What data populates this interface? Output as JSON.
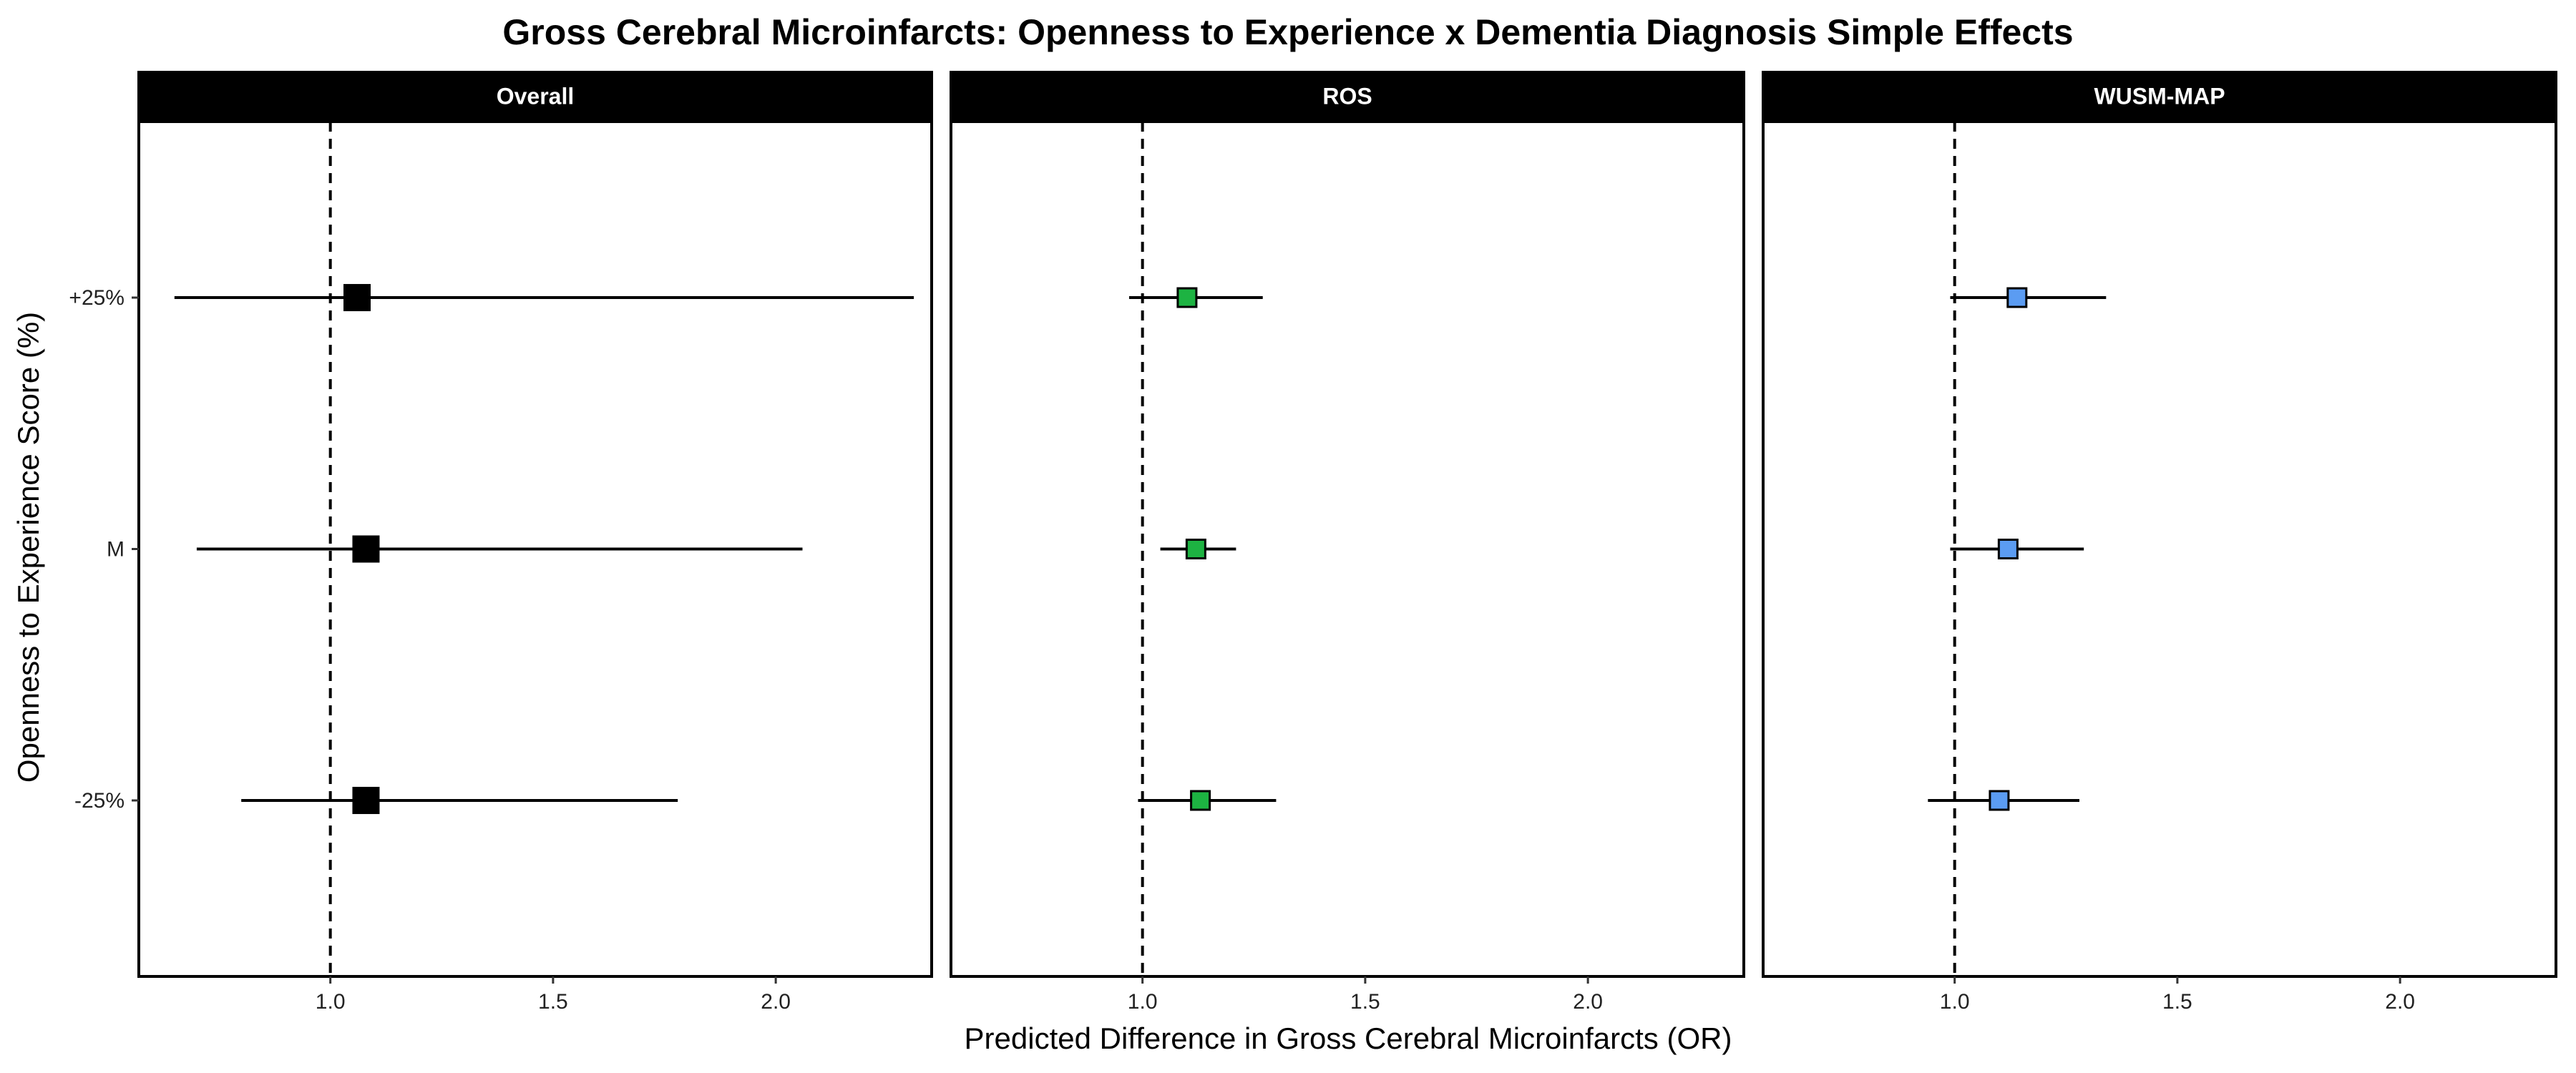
{
  "chart_data": {
    "type": "forest",
    "title": "Gross Cerebral Microinfarcts: Openness to Experience x Dementia Diagnosis Simple Effects",
    "xlabel": "Predicted Difference in Gross Cerebral Microinfarcts (OR)",
    "ylabel": "Openness to Experience Score (%)",
    "categories": [
      "+25%",
      "M",
      "-25%"
    ],
    "xlim": [
      0.57,
      2.35
    ],
    "ylim": [
      0.3,
      3.7
    ],
    "xticks": [
      1.0,
      1.5,
      2.0
    ],
    "xtick_labels": [
      "1.0",
      "1.5",
      "2.0"
    ],
    "reference_line": 1.0,
    "grid": false,
    "panels": [
      {
        "name": "Overall",
        "color": "#000000",
        "points": [
          {
            "category": "+25%",
            "estimate": 1.06,
            "lower": 0.65,
            "upper": 2.31
          },
          {
            "category": "M",
            "estimate": 1.08,
            "lower": 0.7,
            "upper": 2.06
          },
          {
            "category": "-25%",
            "estimate": 1.08,
            "lower": 0.8,
            "upper": 1.78
          }
        ]
      },
      {
        "name": "ROS",
        "color": "#1db342",
        "points": [
          {
            "category": "+25%",
            "estimate": 1.1,
            "lower": 0.97,
            "upper": 1.27
          },
          {
            "category": "M",
            "estimate": 1.12,
            "lower": 1.04,
            "upper": 1.21
          },
          {
            "category": "-25%",
            "estimate": 1.13,
            "lower": 0.99,
            "upper": 1.3
          }
        ]
      },
      {
        "name": "WUSM-MAP",
        "color": "#5b9cf2",
        "points": [
          {
            "category": "+25%",
            "estimate": 1.14,
            "lower": 0.99,
            "upper": 1.34
          },
          {
            "category": "M",
            "estimate": 1.12,
            "lower": 0.99,
            "upper": 1.29
          },
          {
            "category": "-25%",
            "estimate": 1.1,
            "lower": 0.94,
            "upper": 1.28
          }
        ]
      }
    ]
  }
}
